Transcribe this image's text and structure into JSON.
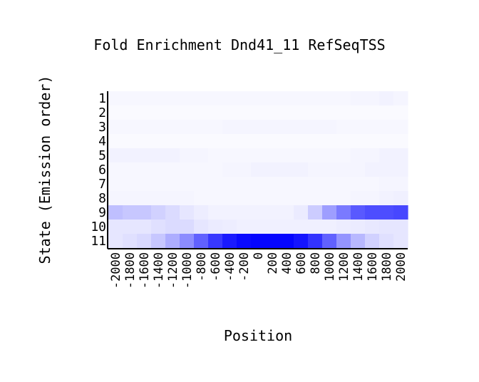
{
  "chart_data": {
    "type": "heatmap",
    "title": "Fold Enrichment Dnd41_11 RefSeqTSS",
    "xlabel": "Position",
    "ylabel": "State (Emission order)",
    "x": [
      "-2000",
      "-1800",
      "-1600",
      "-1400",
      "-1200",
      "-1000",
      "-800",
      "-600",
      "-400",
      "-200",
      "0",
      "200",
      "400",
      "600",
      "800",
      "1000",
      "1200",
      "1400",
      "1600",
      "1800",
      "2000"
    ],
    "y": [
      "1",
      "2",
      "3",
      "4",
      "5",
      "6",
      "7",
      "8",
      "9",
      "10",
      "11"
    ],
    "color_low": "#ffffff",
    "color_high": "#0000ff",
    "values": [
      [
        0.03,
        0.03,
        0.03,
        0.03,
        0.03,
        0.03,
        0.03,
        0.03,
        0.03,
        0.03,
        0.03,
        0.03,
        0.03,
        0.03,
        0.03,
        0.03,
        0.03,
        0.04,
        0.04,
        0.05,
        0.04
      ],
      [
        0.02,
        0.02,
        0.02,
        0.02,
        0.02,
        0.02,
        0.02,
        0.02,
        0.02,
        0.02,
        0.02,
        0.02,
        0.02,
        0.02,
        0.02,
        0.02,
        0.02,
        0.02,
        0.02,
        0.02,
        0.02
      ],
      [
        0.03,
        0.03,
        0.03,
        0.03,
        0.03,
        0.03,
        0.03,
        0.03,
        0.04,
        0.04,
        0.04,
        0.04,
        0.04,
        0.04,
        0.04,
        0.04,
        0.03,
        0.03,
        0.03,
        0.03,
        0.03
      ],
      [
        0.02,
        0.02,
        0.02,
        0.02,
        0.02,
        0.02,
        0.02,
        0.02,
        0.02,
        0.02,
        0.02,
        0.02,
        0.02,
        0.02,
        0.02,
        0.02,
        0.02,
        0.02,
        0.02,
        0.02,
        0.02
      ],
      [
        0.05,
        0.05,
        0.05,
        0.05,
        0.05,
        0.04,
        0.04,
        0.03,
        0.03,
        0.03,
        0.03,
        0.03,
        0.03,
        0.03,
        0.03,
        0.03,
        0.03,
        0.04,
        0.04,
        0.05,
        0.05
      ],
      [
        0.03,
        0.03,
        0.03,
        0.03,
        0.03,
        0.03,
        0.03,
        0.03,
        0.04,
        0.04,
        0.05,
        0.05,
        0.05,
        0.05,
        0.04,
        0.04,
        0.04,
        0.04,
        0.05,
        0.05,
        0.05
      ],
      [
        0.03,
        0.03,
        0.03,
        0.03,
        0.03,
        0.03,
        0.03,
        0.03,
        0.03,
        0.03,
        0.03,
        0.03,
        0.03,
        0.03,
        0.03,
        0.03,
        0.03,
        0.03,
        0.03,
        0.04,
        0.04
      ],
      [
        0.04,
        0.04,
        0.04,
        0.04,
        0.04,
        0.04,
        0.03,
        0.03,
        0.03,
        0.03,
        0.03,
        0.03,
        0.03,
        0.03,
        0.03,
        0.03,
        0.03,
        0.04,
        0.04,
        0.05,
        0.06
      ],
      [
        0.25,
        0.22,
        0.22,
        0.18,
        0.14,
        0.1,
        0.07,
        0.05,
        0.05,
        0.05,
        0.05,
        0.05,
        0.05,
        0.08,
        0.2,
        0.38,
        0.52,
        0.65,
        0.7,
        0.7,
        0.72
      ],
      [
        0.1,
        0.1,
        0.1,
        0.12,
        0.14,
        0.14,
        0.1,
        0.08,
        0.07,
        0.06,
        0.06,
        0.06,
        0.06,
        0.06,
        0.06,
        0.06,
        0.07,
        0.08,
        0.09,
        0.1,
        0.1
      ],
      [
        0.1,
        0.12,
        0.15,
        0.22,
        0.32,
        0.45,
        0.62,
        0.78,
        0.9,
        0.96,
        0.98,
        0.98,
        0.98,
        0.92,
        0.8,
        0.62,
        0.42,
        0.28,
        0.18,
        0.12,
        0.1
      ]
    ]
  }
}
